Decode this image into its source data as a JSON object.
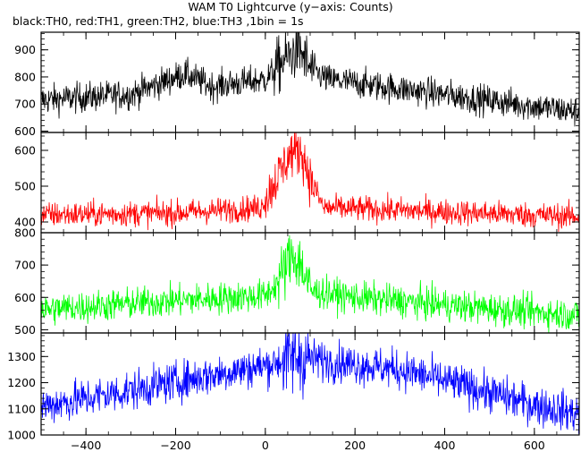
{
  "chart_data": {
    "type": "line",
    "title": "WAM T0 Lightcurve (y−axis: Counts)",
    "subtitle": "black:TH0, red:TH1, green:TH2, blue:TH3 ,1bin = 1s",
    "xlim": [
      -500,
      700
    ],
    "x_ticks": [
      -400,
      -200,
      0,
      200,
      400,
      600
    ],
    "x_tick_labels": [
      "−400",
      "−200",
      "0",
      "200",
      "400",
      "600"
    ],
    "panels": [
      {
        "name": "TH0",
        "color": "#000000",
        "ylim": [
          595,
          965
        ],
        "y_ticks": [
          600,
          700,
          800,
          900
        ],
        "profile": [
          [
            -500,
            715
          ],
          [
            -300,
            735
          ],
          [
            -180,
            812
          ],
          [
            -120,
            765
          ],
          [
            0,
            790
          ],
          [
            40,
            860
          ],
          [
            75,
            905
          ],
          [
            100,
            830
          ],
          [
            140,
            790
          ],
          [
            400,
            735
          ],
          [
            700,
            670
          ]
        ],
        "noise_sd": 28,
        "burst": [
          20,
          105
        ]
      },
      {
        "name": "TH1",
        "color": "#ff0000",
        "ylim": [
          370,
          650
        ],
        "y_ticks": [
          400,
          500,
          600
        ],
        "profile": [
          [
            -500,
            420
          ],
          [
            -200,
            425
          ],
          [
            -10,
            440
          ],
          [
            20,
            510
          ],
          [
            55,
            590
          ],
          [
            80,
            600
          ],
          [
            100,
            520
          ],
          [
            130,
            440
          ],
          [
            700,
            415
          ]
        ],
        "noise_sd": 18,
        "burst": [
          0,
          110
        ]
      },
      {
        "name": "TH2",
        "color": "#00ff00",
        "ylim": [
          490,
          800
        ],
        "y_ticks": [
          500,
          600,
          700,
          800
        ],
        "profile": [
          [
            -500,
            562
          ],
          [
            -200,
            590
          ],
          [
            0,
            605
          ],
          [
            30,
            650
          ],
          [
            60,
            735
          ],
          [
            80,
            700
          ],
          [
            100,
            620
          ],
          [
            200,
            600
          ],
          [
            500,
            565
          ],
          [
            700,
            545
          ]
        ],
        "noise_sd": 25,
        "burst": [
          30,
          105
        ]
      },
      {
        "name": "TH3",
        "color": "#0000ff",
        "ylim": [
          1000,
          1390
        ],
        "y_ticks": [
          1000,
          1100,
          1200,
          1300
        ],
        "profile": [
          [
            -500,
            1110
          ],
          [
            -300,
            1170
          ],
          [
            -150,
            1220
          ],
          [
            0,
            1265
          ],
          [
            70,
            1300
          ],
          [
            150,
            1280
          ],
          [
            300,
            1250
          ],
          [
            450,
            1185
          ],
          [
            600,
            1115
          ],
          [
            700,
            1080
          ]
        ],
        "noise_sd": 38,
        "burst": [
          40,
          100
        ]
      }
    ]
  }
}
